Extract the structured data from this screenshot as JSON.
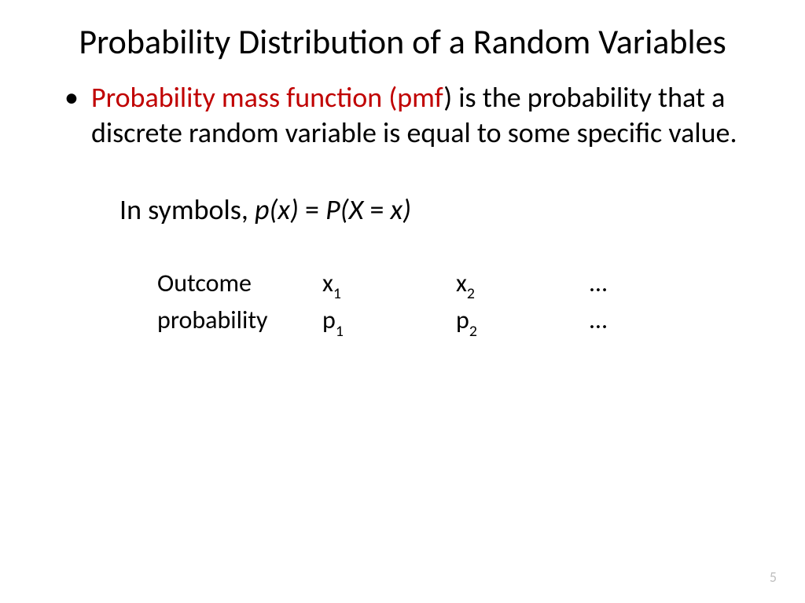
{
  "title": "Probability Distribution of a Random Variables",
  "bullet": {
    "highlight": "Probability mass function (pmf",
    "restFirst": ") is the probability that a discrete random variable is equal to some specific value."
  },
  "symbols": {
    "prefix": "In symbols, ",
    "lhs": "p(x)",
    "eq1": " = ",
    "rhs": "P(X ",
    "eq2": "= ",
    "x": "x)"
  },
  "table": {
    "row1": {
      "label": "Outcome",
      "c1_base": "x",
      "c1_sub": "1",
      "c2_base": "x",
      "c2_sub": "2",
      "dots": "…"
    },
    "row2": {
      "label": "probability",
      "c1_base": "p",
      "c1_sub": "1",
      "c2_base": "p",
      "c2_sub": "2",
      "dots": "…"
    }
  },
  "colors": {
    "highlight": "#c00000",
    "text": "#000000",
    "pagenum": "#bfbfbf",
    "background": "#ffffff"
  },
  "typography": {
    "title_fontsize": 44,
    "body_fontsize": 36,
    "table_fontsize": 32,
    "pagenum_fontsize": 18,
    "font_family": "Calibri"
  },
  "pageNumber": "5"
}
